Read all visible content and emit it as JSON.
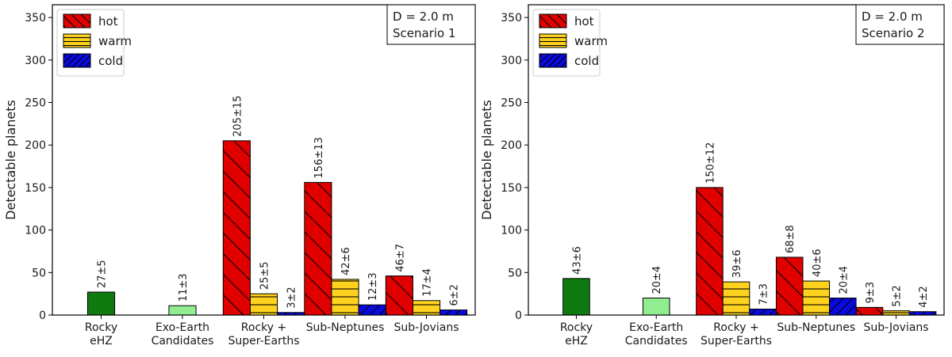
{
  "chart_data": [
    {
      "type": "bar",
      "ylabel": "Detectable planets",
      "ylim": [
        0,
        365
      ],
      "yticks": [
        0,
        50,
        100,
        150,
        200,
        250,
        300,
        350
      ],
      "categories": [
        [
          "Rocky",
          "eHZ"
        ],
        [
          "Exo-Earth",
          "Candidates"
        ],
        [
          "Rocky +",
          "Super-Earths"
        ],
        [
          "Sub-Neptunes"
        ],
        [
          "Sub-Jovians"
        ]
      ],
      "info_box": [
        "D = 2.0 m",
        "Scenario 1"
      ],
      "legend": {
        "position": "top-left",
        "entries": [
          {
            "name": "hot",
            "color": "#e00000",
            "hatch": "\\"
          },
          {
            "name": "warm",
            "color": "#ffd21f",
            "hatch": "-"
          },
          {
            "name": "cold",
            "color": "#0a0ae0",
            "hatch": "/"
          }
        ]
      },
      "single_bars": [
        {
          "category": 0,
          "value": 27,
          "label": "27±5",
          "color": "#0f7a0f"
        },
        {
          "category": 1,
          "value": 11,
          "label": "11±3",
          "color": "#90ee90"
        }
      ],
      "series": [
        {
          "name": "hot",
          "category_values": [
            205,
            156,
            46
          ],
          "labels": [
            "205±15",
            "156±13",
            "46±7"
          ]
        },
        {
          "name": "warm",
          "category_values": [
            25,
            42,
            17
          ],
          "labels": [
            "25±5",
            "42±6",
            "17±4"
          ]
        },
        {
          "name": "cold",
          "category_values": [
            3,
            12,
            6
          ],
          "labels": [
            "3±2",
            "12±3",
            "6±2"
          ]
        }
      ]
    },
    {
      "type": "bar",
      "ylabel": "Detectable planets",
      "ylim": [
        0,
        365
      ],
      "yticks": [
        0,
        50,
        100,
        150,
        200,
        250,
        300,
        350
      ],
      "categories": [
        [
          "Rocky",
          "eHZ"
        ],
        [
          "Exo-Earth",
          "Candidates"
        ],
        [
          "Rocky +",
          "Super-Earths"
        ],
        [
          "Sub-Neptunes"
        ],
        [
          "Sub-Jovians"
        ]
      ],
      "info_box": [
        "D = 2.0 m",
        "Scenario 2"
      ],
      "legend": {
        "position": "top-left",
        "entries": [
          {
            "name": "hot",
            "color": "#e00000",
            "hatch": "\\"
          },
          {
            "name": "warm",
            "color": "#ffd21f",
            "hatch": "-"
          },
          {
            "name": "cold",
            "color": "#0a0ae0",
            "hatch": "/"
          }
        ]
      },
      "single_bars": [
        {
          "category": 0,
          "value": 43,
          "label": "43±6",
          "color": "#0f7a0f"
        },
        {
          "category": 1,
          "value": 20,
          "label": "20±4",
          "color": "#90ee90"
        }
      ],
      "series": [
        {
          "name": "hot",
          "category_values": [
            150,
            68,
            9
          ],
          "labels": [
            "150±12",
            "68±8",
            "9±3"
          ]
        },
        {
          "name": "warm",
          "category_values": [
            39,
            40,
            5
          ],
          "labels": [
            "39±6",
            "40±6",
            "5±2"
          ]
        },
        {
          "name": "cold",
          "category_values": [
            7,
            20,
            4
          ],
          "labels": [
            "7±3",
            "20±4",
            "4±2"
          ]
        }
      ]
    }
  ]
}
